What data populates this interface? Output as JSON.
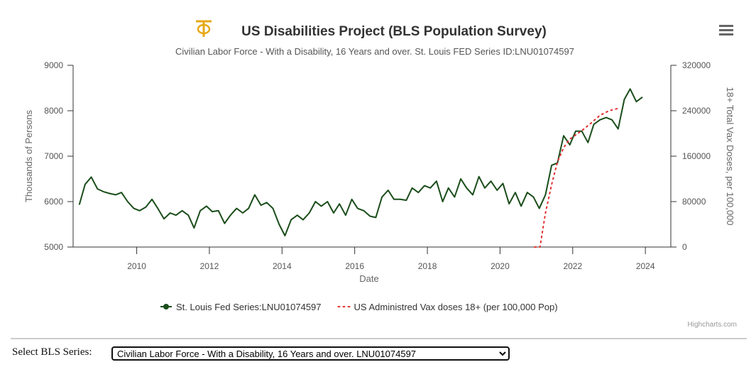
{
  "chart_data": {
    "type": "line",
    "title": "US Disabilities Project (BLS Population Survey)",
    "subtitle": "Civilian Labor Force - With a Disability, 16 Years and over. St. Louis FED Series ID:LNU01074597",
    "x_label": "Date",
    "y_label": "Thousands of Persons",
    "y2_label": "18+ Total Vax Doses, per 100,000",
    "xlim": [
      2008.25,
      2024.7
    ],
    "xticks": [
      2010,
      2012,
      2014,
      2016,
      2018,
      2020,
      2022,
      2024
    ],
    "ylim": [
      5000,
      9000
    ],
    "yticks": [
      5000,
      6000,
      7000,
      8000,
      9000
    ],
    "y2lim": [
      0,
      320000
    ],
    "y2ticks": [
      0,
      80000,
      160000,
      240000,
      320000
    ],
    "grid": false,
    "legend": "bottom",
    "series": [
      {
        "name": "St. Louis Fed Series:LNU01074597",
        "color": "#1b4d1b",
        "x": [
          2008.42,
          2008.58,
          2008.75,
          2008.92,
          2009.08,
          2009.25,
          2009.42,
          2009.58,
          2009.75,
          2009.92,
          2010.08,
          2010.25,
          2010.42,
          2010.58,
          2010.75,
          2010.92,
          2011.08,
          2011.25,
          2011.42,
          2011.58,
          2011.75,
          2011.92,
          2012.08,
          2012.25,
          2012.42,
          2012.58,
          2012.75,
          2012.92,
          2013.08,
          2013.25,
          2013.42,
          2013.58,
          2013.75,
          2013.92,
          2014.08,
          2014.25,
          2014.42,
          2014.58,
          2014.75,
          2014.92,
          2015.08,
          2015.25,
          2015.42,
          2015.58,
          2015.75,
          2015.92,
          2016.08,
          2016.25,
          2016.42,
          2016.58,
          2016.75,
          2016.92,
          2017.08,
          2017.25,
          2017.42,
          2017.58,
          2017.75,
          2017.92,
          2018.08,
          2018.25,
          2018.42,
          2018.58,
          2018.75,
          2018.92,
          2019.08,
          2019.25,
          2019.42,
          2019.58,
          2019.75,
          2019.92,
          2020.08,
          2020.25,
          2020.42,
          2020.58,
          2020.75,
          2020.92,
          2021.08,
          2021.25,
          2021.42,
          2021.58,
          2021.75,
          2021.92,
          2022.08,
          2022.25,
          2022.42,
          2022.58,
          2022.75,
          2022.92,
          2023.08,
          2023.25,
          2023.42,
          2023.58,
          2023.75,
          2023.92
        ],
        "values": [
          5930,
          6380,
          6540,
          6280,
          6220,
          6180,
          6150,
          6200,
          6000,
          5850,
          5800,
          5880,
          6050,
          5850,
          5620,
          5750,
          5700,
          5800,
          5700,
          5420,
          5800,
          5900,
          5780,
          5800,
          5520,
          5700,
          5850,
          5750,
          5850,
          6150,
          5920,
          5980,
          5850,
          5500,
          5250,
          5600,
          5700,
          5600,
          5750,
          6000,
          5900,
          6000,
          5750,
          5950,
          5700,
          6050,
          5850,
          5800,
          5680,
          5650,
          6100,
          6250,
          6050,
          6050,
          6030,
          6300,
          6200,
          6350,
          6300,
          6450,
          6000,
          6300,
          6100,
          6500,
          6300,
          6150,
          6550,
          6300,
          6450,
          6250,
          6400,
          5950,
          6200,
          5900,
          6200,
          6100,
          5850,
          6150,
          6800,
          6850,
          7450,
          7250,
          7550,
          7550,
          7300,
          7700,
          7800,
          7850,
          7800,
          7600,
          8250,
          8480,
          8200,
          8300
        ]
      },
      {
        "name": "US Administred Vax doses 18+ (per 100,000 Pop)",
        "color": "#e0302f",
        "axis": "y2",
        "dash": true,
        "x": [
          2020.95,
          2021.1,
          2021.25,
          2021.42,
          2021.58,
          2021.75,
          2021.92,
          2022.25,
          2022.5,
          2022.75,
          2023.0,
          2023.3
        ],
        "values": [
          0,
          0,
          60000,
          110000,
          150000,
          175000,
          190000,
          205000,
          218000,
          232000,
          240000,
          245000
        ]
      }
    ],
    "credits": "Highcharts.com"
  },
  "selector": {
    "label": "Select BLS Series:",
    "selected": "Civilian Labor Force - With a Disability, 16 Years and over. LNU01074597"
  }
}
